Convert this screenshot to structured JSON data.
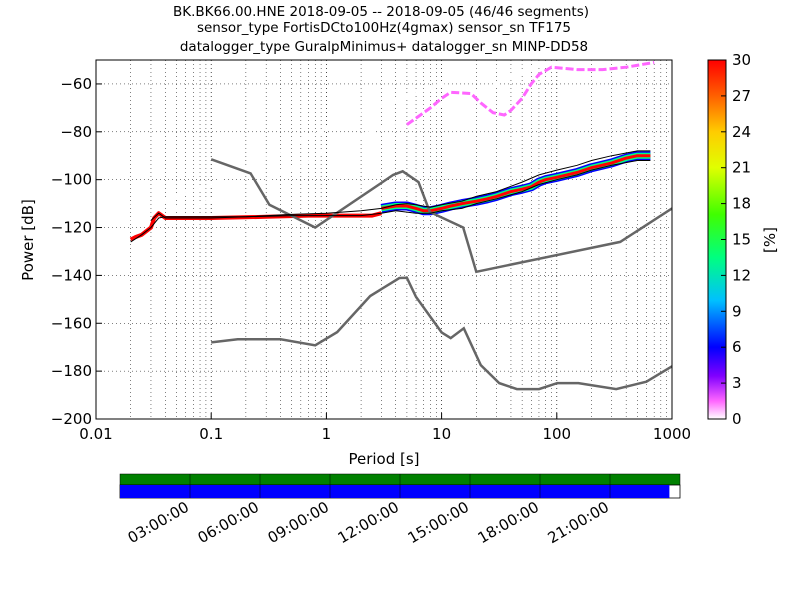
{
  "title": {
    "line1": "BK.BK66.00.HNE   2018-09-05 -- 2018-09-05  (46/46 segments)",
    "line2": "sensor_type FortisDCto100Hz(4gmax) sensor_sn TF175",
    "line3": "datalogger_type GuralpMinimus+ datalogger_sn MINP-DD58"
  },
  "chart_data": {
    "type": "heatmap",
    "xlabel": "Period [s]",
    "ylabel": "Power [dB]",
    "xscale": "log",
    "xlim": [
      0.01,
      1000
    ],
    "ylim": [
      -200,
      -50
    ],
    "xticks": [
      {
        "value": 0.01,
        "label": "0.01"
      },
      {
        "value": 0.1,
        "label": "0.1"
      },
      {
        "value": 1,
        "label": "1"
      },
      {
        "value": 10,
        "label": "10"
      },
      {
        "value": 100,
        "label": "100"
      },
      {
        "value": 1000,
        "label": "1000"
      }
    ],
    "yticks": [
      {
        "value": -60,
        "label": "−60"
      },
      {
        "value": -80,
        "label": "−80"
      },
      {
        "value": -100,
        "label": "−100"
      },
      {
        "value": -120,
        "label": "−120"
      },
      {
        "value": -140,
        "label": "−140"
      },
      {
        "value": -160,
        "label": "−160"
      },
      {
        "value": -180,
        "label": "−180"
      },
      {
        "value": -200,
        "label": "−200"
      }
    ],
    "grid": "dotted",
    "colorbar": {
      "label": "[%]",
      "min": 0,
      "max": 30,
      "ticks": [
        "0",
        "3",
        "6",
        "9",
        "12",
        "15",
        "18",
        "21",
        "24",
        "27",
        "30"
      ]
    },
    "noise_models": [
      {
        "model": "high",
        "points": [
          [
            0.1,
            -91.5
          ],
          [
            0.22,
            -97.4
          ],
          [
            0.32,
            -110.5
          ],
          [
            0.8,
            -120
          ],
          [
            3.8,
            -98
          ],
          [
            4.6,
            -96.5
          ],
          [
            6.3,
            -101
          ],
          [
            7.9,
            -113.5
          ],
          [
            15.4,
            -120
          ],
          [
            20,
            -138.5
          ],
          [
            354.8,
            -126
          ],
          [
            1000,
            -112
          ]
        ]
      },
      {
        "model": "low",
        "points": [
          [
            0.1,
            -168
          ],
          [
            0.17,
            -166.7
          ],
          [
            0.4,
            -166.7
          ],
          [
            0.8,
            -169.2
          ],
          [
            1.24,
            -163.7
          ],
          [
            2.4,
            -148.6
          ],
          [
            4.3,
            -141.1
          ],
          [
            5,
            -141
          ],
          [
            6,
            -149
          ],
          [
            10,
            -163.8
          ],
          [
            12,
            -166.2
          ],
          [
            15.6,
            -162.1
          ],
          [
            21.9,
            -177.5
          ],
          [
            31.6,
            -185
          ],
          [
            45,
            -187.5
          ],
          [
            70,
            -187.5
          ],
          [
            101,
            -185
          ],
          [
            154,
            -185
          ],
          [
            328,
            -187.5
          ],
          [
            600,
            -184.4
          ],
          [
            1000,
            -178
          ]
        ]
      }
    ],
    "percentile_lines": [
      {
        "name": "5th",
        "points": [
          [
            0.02,
            -126
          ],
          [
            0.025,
            -123
          ],
          [
            0.03,
            -120
          ],
          [
            0.035,
            -116
          ],
          [
            0.04,
            -115.5
          ],
          [
            0.1,
            -115.5
          ],
          [
            0.2,
            -115.5
          ],
          [
            0.5,
            -115
          ],
          [
            1,
            -115
          ],
          [
            2,
            -115
          ],
          [
            3,
            -114
          ],
          [
            4,
            -113
          ],
          [
            6,
            -114
          ],
          [
            8,
            -114
          ],
          [
            10,
            -113
          ],
          [
            15,
            -112
          ],
          [
            20,
            -110
          ],
          [
            30,
            -108
          ],
          [
            50,
            -105
          ],
          [
            70,
            -102
          ],
          [
            100,
            -100
          ],
          [
            150,
            -98
          ],
          [
            200,
            -96
          ],
          [
            300,
            -94
          ],
          [
            500,
            -92
          ],
          [
            650,
            -92
          ]
        ]
      },
      {
        "name": "95th",
        "points": [
          [
            0.03,
            -117
          ],
          [
            0.035,
            -114
          ],
          [
            0.04,
            -116
          ],
          [
            0.1,
            -116
          ],
          [
            0.2,
            -115.5
          ],
          [
            0.5,
            -114.5
          ],
          [
            1,
            -114
          ],
          [
            2,
            -113
          ],
          [
            3,
            -112
          ],
          [
            4,
            -110.5
          ],
          [
            5,
            -110
          ],
          [
            6,
            -110.5
          ],
          [
            8,
            -111.5
          ],
          [
            10,
            -110.5
          ],
          [
            15,
            -109
          ],
          [
            20,
            -107
          ],
          [
            30,
            -105
          ],
          [
            50,
            -101
          ],
          [
            70,
            -98
          ],
          [
            100,
            -96
          ],
          [
            150,
            -94
          ],
          [
            200,
            -92
          ],
          [
            300,
            -90
          ],
          [
            500,
            -88
          ],
          [
            650,
            -88
          ]
        ]
      }
    ],
    "density_bands": [
      {
        "points": [
          [
            0.02,
            -125
          ],
          [
            0.022,
            -124
          ],
          [
            0.025,
            -123
          ],
          [
            0.03,
            -120
          ],
          [
            0.032,
            -116
          ],
          [
            0.035,
            -114
          ],
          [
            0.04,
            -116
          ],
          [
            0.1,
            -116
          ],
          [
            0.3,
            -115.5
          ],
          [
            0.7,
            -115
          ],
          [
            1.5,
            -115
          ],
          [
            2.5,
            -115
          ],
          [
            3,
            -114
          ]
        ],
        "pct": 30
      },
      {
        "points": [
          [
            3,
            -112
          ],
          [
            4,
            -111
          ],
          [
            5,
            -111
          ],
          [
            6,
            -112
          ],
          [
            7,
            -113
          ],
          [
            8,
            -113
          ],
          [
            10,
            -112
          ],
          [
            12,
            -111
          ],
          [
            15,
            -110
          ],
          [
            20,
            -109
          ],
          [
            25,
            -108
          ],
          [
            30,
            -107
          ],
          [
            40,
            -105
          ],
          [
            50,
            -104
          ],
          [
            60,
            -103
          ],
          [
            70,
            -101
          ],
          [
            80,
            -100
          ],
          [
            100,
            -99
          ],
          [
            150,
            -97
          ],
          [
            200,
            -95
          ],
          [
            300,
            -93
          ],
          [
            400,
            -91
          ],
          [
            500,
            -90
          ],
          [
            650,
            -90
          ]
        ],
        "pct": 14
      }
    ],
    "sparse_bands": [
      {
        "points": [
          [
            0.02,
            -117
          ],
          [
            0.03,
            -114
          ],
          [
            0.05,
            -112
          ],
          [
            0.08,
            -110
          ],
          [
            0.15,
            -106
          ],
          [
            0.3,
            -100
          ],
          [
            0.6,
            -93
          ],
          [
            1.2,
            -86
          ],
          [
            2.5,
            -80
          ],
          [
            4,
            -77
          ],
          [
            6,
            -74
          ],
          [
            10,
            -69
          ],
          [
            15,
            -66
          ],
          [
            25,
            -62
          ],
          [
            40,
            -57
          ],
          [
            70,
            -52
          ],
          [
            150,
            -51
          ],
          [
            300,
            -51
          ],
          [
            700,
            -51
          ]
        ],
        "pct": 1
      },
      {
        "points": [
          [
            0.02,
            -111
          ],
          [
            0.03,
            -110
          ],
          [
            0.05,
            -107
          ],
          [
            0.08,
            -104
          ],
          [
            0.15,
            -98
          ],
          [
            0.3,
            -91
          ],
          [
            0.6,
            -84
          ],
          [
            1.2,
            -77
          ],
          [
            2.5,
            -70
          ],
          [
            4,
            -67
          ],
          [
            6,
            -64
          ],
          [
            10,
            -60
          ],
          [
            15,
            -57
          ],
          [
            25,
            -55
          ],
          [
            40,
            -53
          ],
          [
            70,
            -52
          ],
          [
            150,
            -51
          ],
          [
            300,
            -51
          ],
          [
            700,
            -51
          ]
        ],
        "pct": 1
      },
      {
        "points": [
          [
            5,
            -77
          ],
          [
            8,
            -70
          ],
          [
            10,
            -66
          ],
          [
            12,
            -63.5
          ],
          [
            18,
            -64
          ],
          [
            22,
            -68
          ],
          [
            28,
            -72
          ],
          [
            35,
            -73
          ],
          [
            40,
            -71
          ],
          [
            50,
            -66
          ],
          [
            60,
            -60
          ],
          [
            70,
            -56
          ],
          [
            90,
            -53
          ],
          [
            150,
            -54
          ],
          [
            250,
            -54
          ],
          [
            400,
            -53
          ],
          [
            700,
            -51
          ]
        ],
        "pct": 2
      }
    ]
  },
  "timeline": {
    "labels": [
      "03:00:00",
      "06:00:00",
      "09:00:00",
      "12:00:00",
      "15:00:00",
      "18:00:00",
      "21:00:00"
    ],
    "hours": [
      3,
      6,
      9,
      12,
      15,
      18,
      21
    ],
    "data_coverage_end_fraction": 0.981,
    "colors": {
      "available": "#008000",
      "psd": "#0000ff",
      "gap": "#ffffff"
    }
  }
}
